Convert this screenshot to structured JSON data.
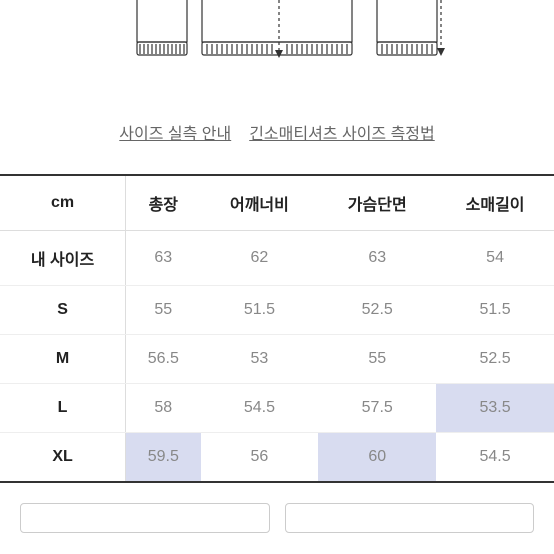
{
  "links": {
    "measurement_guide": "사이즈 실측 안내",
    "measurement_method": "긴소매티셔츠 사이즈 측정법"
  },
  "table": {
    "unit_header": "cm",
    "columns": [
      "총장",
      "어깨너비",
      "가슴단면",
      "소매길이"
    ],
    "rows": [
      {
        "label": "내 사이즈",
        "values": [
          "63",
          "62",
          "63",
          "54"
        ],
        "highlights": [
          false,
          false,
          false,
          false
        ]
      },
      {
        "label": "S",
        "values": [
          "55",
          "51.5",
          "52.5",
          "51.5"
        ],
        "highlights": [
          false,
          false,
          false,
          false
        ]
      },
      {
        "label": "M",
        "values": [
          "56.5",
          "53",
          "55",
          "52.5"
        ],
        "highlights": [
          false,
          false,
          false,
          false
        ]
      },
      {
        "label": "L",
        "values": [
          "58",
          "54.5",
          "57.5",
          "53.5"
        ],
        "highlights": [
          false,
          false,
          false,
          true
        ]
      },
      {
        "label": "XL",
        "values": [
          "59.5",
          "56",
          "60",
          "54.5"
        ],
        "highlights": [
          true,
          false,
          true,
          false
        ]
      }
    ]
  },
  "styling": {
    "highlight_color": "#d8dcf0",
    "border_color": "#333",
    "text_muted": "#888",
    "text_primary": "#222"
  }
}
